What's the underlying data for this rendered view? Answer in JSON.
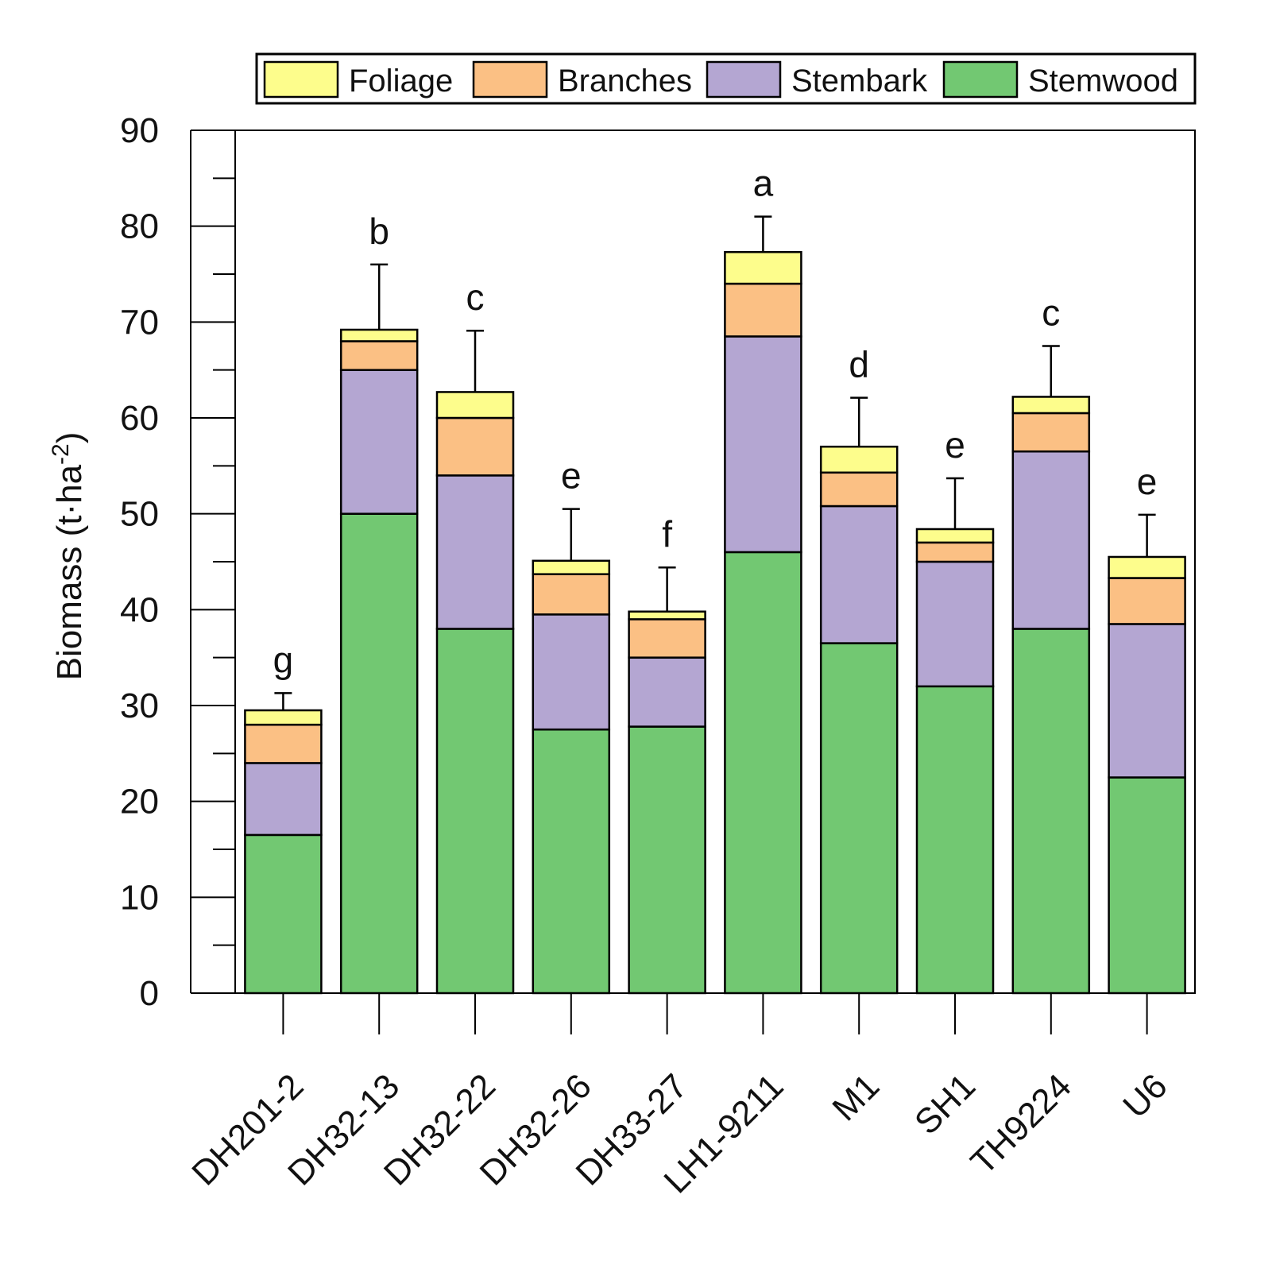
{
  "chart_data": {
    "type": "bar",
    "stacked": true,
    "title": "",
    "xlabel": "",
    "ylabel": "Biomass (t·ha",
    "ylabel_superscript": "-2",
    "ylabel_close": ")",
    "ylim": [
      0,
      90
    ],
    "yticks": [
      0,
      10,
      20,
      30,
      40,
      50,
      60,
      70,
      80,
      90
    ],
    "grid": false,
    "legend_position": "top",
    "categories": [
      "DH201-2",
      "DH32-13",
      "DH32-22",
      "DH32-26",
      "DH33-27",
      "LH1-9211",
      "M1",
      "SH1",
      "TH9224",
      "U6"
    ],
    "series": [
      {
        "name": "Stemwood",
        "color": "#72c872",
        "values": [
          16.5,
          50.0,
          38.0,
          27.5,
          27.8,
          46.0,
          36.5,
          32.0,
          38.0,
          22.5
        ]
      },
      {
        "name": "Stembark",
        "color": "#b4a6d2",
        "values": [
          7.5,
          15.0,
          16.0,
          12.0,
          7.2,
          22.5,
          14.3,
          13.0,
          18.5,
          16.0
        ]
      },
      {
        "name": "Branches",
        "color": "#fbc084",
        "values": [
          4.0,
          3.0,
          6.0,
          4.2,
          4.0,
          5.5,
          3.5,
          2.0,
          4.0,
          4.8
        ]
      },
      {
        "name": "Foliage",
        "color": "#fdfd8c",
        "values": [
          1.5,
          1.2,
          2.7,
          1.4,
          0.8,
          3.3,
          2.7,
          1.4,
          1.7,
          2.2
        ]
      }
    ],
    "legend_order": [
      "Foliage",
      "Branches",
      "Stembark",
      "Stemwood"
    ],
    "error_bars": [
      1.8,
      6.8,
      6.4,
      5.4,
      4.6,
      3.7,
      5.1,
      5.3,
      5.3,
      4.4
    ],
    "significance_letters": [
      "g",
      "b",
      "c",
      "e",
      "f",
      "a",
      "d",
      "e",
      "c",
      "e"
    ]
  }
}
